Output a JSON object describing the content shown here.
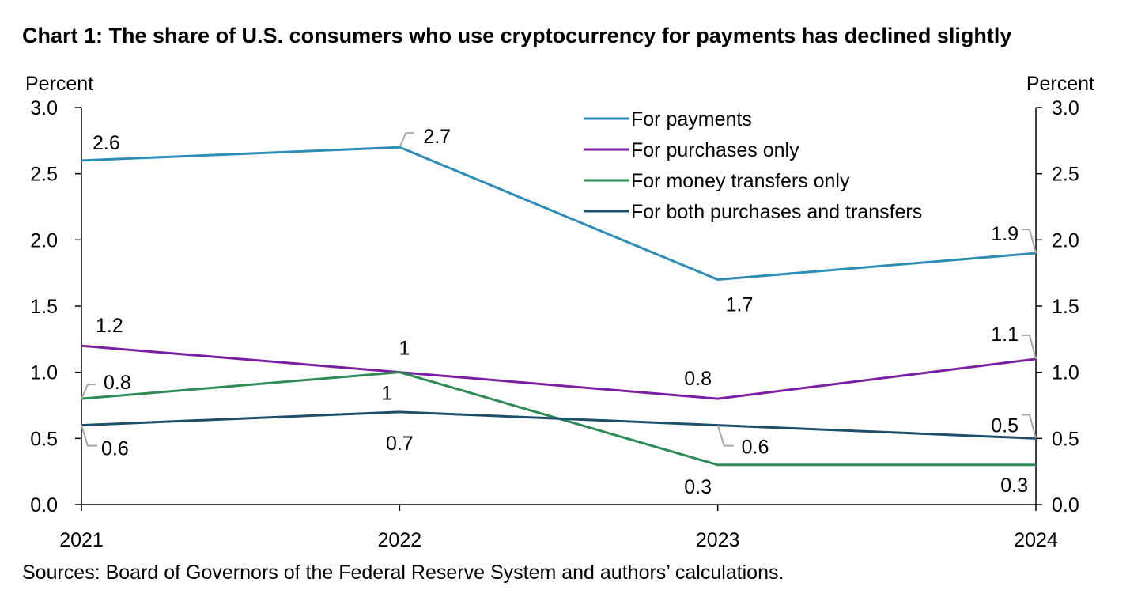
{
  "title": "Chart 1: The share of U.S. consumers who use cryptocurrency for payments has declined slightly",
  "source": "Sources: Board of Governors of the Federal Reserve System and authors’ calculations.",
  "colors": {
    "axis": "#000000",
    "leader": "#a6a6a6"
  },
  "chart_data": {
    "type": "line",
    "title": "Chart 1: The share of U.S. consumers who use cryptocurrency for payments has declined slightly",
    "x": [
      "2021",
      "2022",
      "2023",
      "2024"
    ],
    "ylabel_left": "Percent",
    "ylabel_right": "Percent",
    "ylim": [
      0,
      3.0
    ],
    "yticks": [
      "0.0",
      "0.5",
      "1.0",
      "1.5",
      "2.0",
      "2.5",
      "3.0"
    ],
    "grid": false,
    "legend_position": "top-right",
    "series": [
      {
        "name": "For payments",
        "color": "#2e8db5",
        "values": [
          2.6,
          2.7,
          1.7,
          1.9
        ],
        "labels": [
          "2.6",
          "2.7",
          "1.7",
          "1.9"
        ]
      },
      {
        "name": "For purchases only",
        "color": "#7a1fa2",
        "values": [
          1.2,
          1.0,
          0.8,
          1.1
        ],
        "labels": [
          "1.2",
          "1",
          "0.8",
          "1.1"
        ]
      },
      {
        "name": "For money transfers only",
        "color": "#2e8b57",
        "values": [
          0.8,
          1.0,
          0.3,
          0.3
        ],
        "labels": [
          "0.8",
          "1",
          "0.3",
          "0.3"
        ]
      },
      {
        "name": "For both purchases and transfers",
        "color": "#1f4e6b",
        "values": [
          0.6,
          0.7,
          0.6,
          0.5
        ],
        "labels": [
          "0.6",
          "0.7",
          "0.6",
          "0.5"
        ]
      }
    ]
  }
}
